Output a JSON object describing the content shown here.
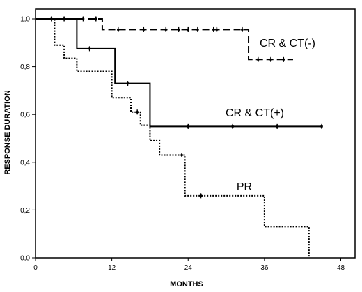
{
  "chart_data": {
    "type": "line",
    "subtype": "kaplan-meier step curves",
    "xlabel": "MONTHS",
    "ylabel": "RESPONSE DURATION",
    "xlim": [
      0,
      50
    ],
    "ylim": [
      0.0,
      1.0
    ],
    "xticks": [
      0,
      12,
      24,
      36,
      48
    ],
    "yticks": [
      "0,0",
      "0,2",
      "0,4",
      "0,6",
      "0,8",
      "1,0"
    ],
    "grid": false,
    "legend": "none",
    "series": [
      {
        "name": "CR & CT(-)",
        "line_style": "dashed",
        "color": "#000000",
        "steps": [
          [
            0,
            1.0
          ],
          [
            10.5,
            0.955
          ],
          [
            33.5,
            0.83
          ]
        ],
        "end_x": 40.5,
        "censored": [
          [
            2.5,
            1.0
          ],
          [
            4.5,
            1.0
          ],
          [
            7.5,
            1.0
          ],
          [
            9.5,
            1.0
          ],
          [
            13,
            0.955
          ],
          [
            17,
            0.955
          ],
          [
            20.5,
            0.955
          ],
          [
            22.5,
            0.955
          ],
          [
            24,
            0.955
          ],
          [
            25.5,
            0.955
          ],
          [
            28,
            0.955
          ],
          [
            28.5,
            0.955
          ],
          [
            32.5,
            0.955
          ],
          [
            35,
            0.83
          ],
          [
            37,
            0.83
          ],
          [
            39,
            0.83
          ]
        ]
      },
      {
        "name": "CR & CT(+)",
        "line_style": "solid",
        "color": "#000000",
        "steps": [
          [
            0,
            1.0
          ],
          [
            6.5,
            0.875
          ],
          [
            12.5,
            0.73
          ],
          [
            18,
            0.55
          ]
        ],
        "end_x": 45,
        "censored": [
          [
            8.5,
            0.875
          ],
          [
            14.5,
            0.73
          ],
          [
            24,
            0.55
          ],
          [
            31,
            0.55
          ],
          [
            38,
            0.55
          ],
          [
            45,
            0.55
          ]
        ]
      },
      {
        "name": "PR",
        "line_style": "dotted",
        "color": "#000000",
        "steps": [
          [
            0,
            1.0
          ],
          [
            3,
            0.89
          ],
          [
            4.5,
            0.835
          ],
          [
            6.5,
            0.78
          ],
          [
            12,
            0.67
          ],
          [
            15,
            0.61
          ],
          [
            16.5,
            0.555
          ],
          [
            18,
            0.49
          ],
          [
            19.5,
            0.43
          ],
          [
            23.5,
            0.26
          ],
          [
            36,
            0.13
          ],
          [
            43,
            0.0
          ]
        ],
        "end_x": 43,
        "censored": [
          [
            16,
            0.61
          ],
          [
            23,
            0.43
          ],
          [
            26,
            0.26
          ]
        ]
      }
    ],
    "annotations": [
      {
        "text": "CR & CT(-)",
        "series": 0
      },
      {
        "text": "CR & CT(+)",
        "series": 1
      },
      {
        "text": "PR",
        "series": 2
      }
    ]
  }
}
